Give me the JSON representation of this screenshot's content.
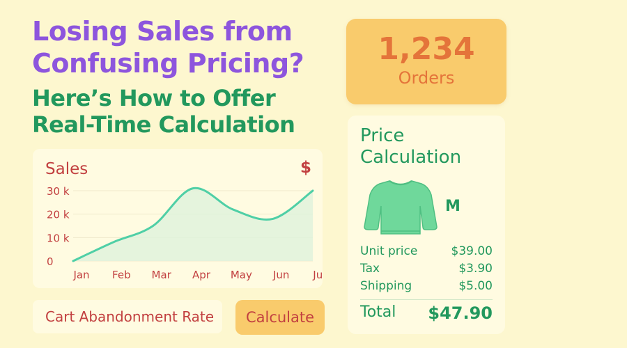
{
  "headline": {
    "line1": "Losing Sales from Confusing Pricing?",
    "line2": "Here’s How to Offer Real-Time Calculation"
  },
  "orders": {
    "count": "1,234",
    "label": "Orders"
  },
  "sales_widget": {
    "title": "Sales",
    "currency_symbol": "$"
  },
  "chart_data": {
    "type": "area",
    "title": "Sales",
    "x": [
      "Jan",
      "Feb",
      "Mar",
      "Apr",
      "May",
      "Jun",
      "Jun"
    ],
    "y_ticks": [
      "30 k",
      "20 k",
      "10 k",
      "0"
    ],
    "ylim": [
      0,
      30000
    ],
    "series": [
      {
        "values": [
          0,
          8000,
          15000,
          31000,
          22000,
          18000,
          30000
        ]
      }
    ],
    "grid": true,
    "colors": {
      "line": "#4fcfa6",
      "fill": "#dff3dc",
      "grid": "#f0e9cc",
      "labels": "#c24040"
    }
  },
  "cart": {
    "label": "Cart Abandonment Rate",
    "button": "Calculate"
  },
  "price_calc": {
    "title": "Price Calculation",
    "product_icon": "sweater-icon",
    "size": "M",
    "rows": [
      {
        "label": "Unit price",
        "value": "$39.00"
      },
      {
        "label": "Tax",
        "value": "$3.90"
      },
      {
        "label": "Shipping",
        "value": "$5.00"
      }
    ],
    "total_label": "Total",
    "total_value": "$47.90"
  },
  "colors": {
    "background": "#fdf7cf",
    "purple": "#8d55dd",
    "green": "#22985d",
    "orange": "#e4743a",
    "yellow_card": "#f9cb6c",
    "red": "#c24040",
    "sweater": "#6fd89b"
  }
}
